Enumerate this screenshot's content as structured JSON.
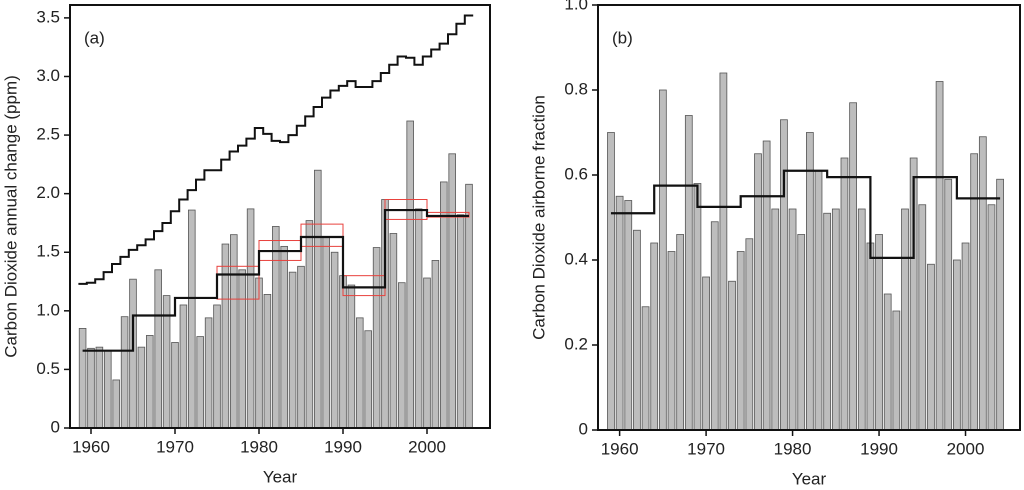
{
  "chart_data": [
    {
      "type": "bar",
      "label": "(a)",
      "xlabel": "Year",
      "ylabel": "Carbon Dioxide annual change (ppm)",
      "xlim": [
        1957.5,
        2007.5
      ],
      "xticks": [
        1960,
        1970,
        1980,
        1990,
        2000
      ],
      "ylim": [
        0,
        3.61
      ],
      "yticks": [
        0,
        0.5,
        {
          "value": 1,
          "label": "1.0"
        },
        1.5,
        {
          "value": 2,
          "label": "2.0"
        },
        2.5,
        {
          "value": 3,
          "label": "3.0"
        },
        3.5
      ],
      "x": [
        1959,
        1960,
        1961,
        1962,
        1963,
        1964,
        1965,
        1966,
        1967,
        1968,
        1969,
        1970,
        1971,
        1972,
        1973,
        1974,
        1975,
        1976,
        1977,
        1978,
        1979,
        1980,
        1981,
        1982,
        1983,
        1984,
        1985,
        1986,
        1987,
        1988,
        1989,
        1990,
        1991,
        1992,
        1993,
        1994,
        1995,
        1996,
        1997,
        1998,
        1999,
        2000,
        2001,
        2002,
        2003,
        2004,
        2005
      ],
      "series": [
        {
          "color": "#bdbdbd",
          "values": [
            0.85,
            0.68,
            0.69,
            0.66,
            0.41,
            0.95,
            1.27,
            0.69,
            0.79,
            1.35,
            1.13,
            0.73,
            1.05,
            1.86,
            0.78,
            0.94,
            1.05,
            1.57,
            1.65,
            1.35,
            1.87,
            1.28,
            1.14,
            1.72,
            1.55,
            1.33,
            1.38,
            1.77,
            2.2,
            1.63,
            1.5,
            1.3,
            1.22,
            0.94,
            0.83,
            1.54,
            1.95,
            1.66,
            1.24,
            2.62,
            1.87,
            1.28,
            1.43,
            2.1,
            2.34,
            1.82,
            2.08
          ]
        },
        {
          "type": "step",
          "color": "#111111",
          "values": [
            1.23,
            1.24,
            1.27,
            1.33,
            1.4,
            1.46,
            1.52,
            1.56,
            1.61,
            1.68,
            1.75,
            1.85,
            1.95,
            2.03,
            2.12,
            2.2,
            2.2,
            2.29,
            2.36,
            2.41,
            2.47,
            2.56,
            2.51,
            2.45,
            2.44,
            2.5,
            2.58,
            2.66,
            2.74,
            2.82,
            2.88,
            2.92,
            2.96,
            2.91,
            2.91,
            2.96,
            3.03,
            3.1,
            3.17,
            3.16,
            3.1,
            3.17,
            3.23,
            3.28,
            3.36,
            3.45,
            3.52
          ]
        }
      ],
      "means": {
        "color": "#111111",
        "bins": [
          1959,
          1965,
          1970,
          1975,
          1980,
          1985,
          1990,
          1995,
          2000,
          2005
        ],
        "values": [
          0.66,
          0.96,
          1.11,
          1.31,
          1.51,
          1.63,
          1.2,
          1.86,
          1.81
        ]
      },
      "ranges": {
        "color": "#e8413c",
        "bins": [
          1975,
          1980,
          1985,
          1990,
          1995,
          2000,
          2005
        ],
        "low": [
          1.1,
          1.43,
          1.55,
          1.13,
          1.78,
          1.8
        ],
        "high": [
          1.38,
          1.6,
          1.74,
          1.3,
          1.95,
          1.84
        ]
      }
    },
    {
      "type": "bar",
      "label": "(b)",
      "xlabel": "Year",
      "ylabel": "Carbon Dioxide airborne fraction",
      "xlim": [
        1957.5,
        2006.3
      ],
      "xticks": [
        1960,
        1970,
        1980,
        1990,
        2000
      ],
      "ylim": [
        0,
        1
      ],
      "yticks": [
        0,
        0.2,
        0.4,
        0.6,
        0.8,
        {
          "value": 1,
          "label": "1.0"
        }
      ],
      "x": [
        1959,
        1960,
        1961,
        1962,
        1963,
        1964,
        1965,
        1966,
        1967,
        1968,
        1969,
        1970,
        1971,
        1972,
        1973,
        1974,
        1975,
        1976,
        1977,
        1978,
        1979,
        1980,
        1981,
        1982,
        1983,
        1984,
        1985,
        1986,
        1987,
        1988,
        1989,
        1990,
        1991,
        1992,
        1993,
        1994,
        1995,
        1996,
        1997,
        1998,
        1999,
        2000,
        2001,
        2002,
        2003,
        2004
      ],
      "series": [
        {
          "color": "#bdbdbd",
          "values": [
            0.7,
            0.55,
            0.54,
            0.47,
            0.29,
            0.44,
            0.8,
            0.42,
            0.46,
            0.74,
            0.58,
            0.36,
            0.49,
            0.84,
            0.35,
            0.42,
            0.45,
            0.65,
            0.68,
            0.52,
            0.73,
            0.52,
            0.46,
            0.7,
            0.61,
            0.51,
            0.52,
            0.64,
            0.77,
            0.52,
            0.44,
            0.46,
            0.32,
            0.28,
            0.52,
            0.64,
            0.53,
            0.39,
            0.82,
            0.59,
            0.4,
            0.44,
            0.65,
            0.69,
            0.53,
            0.59
          ]
        }
      ],
      "means": {
        "color": "#111111",
        "bins": [
          1959,
          1964,
          1969,
          1974,
          1979,
          1984,
          1989,
          1994,
          1999,
          2004
        ],
        "values": [
          0.51,
          0.575,
          0.525,
          0.55,
          0.61,
          0.595,
          0.405,
          0.595,
          0.545
        ]
      }
    }
  ]
}
